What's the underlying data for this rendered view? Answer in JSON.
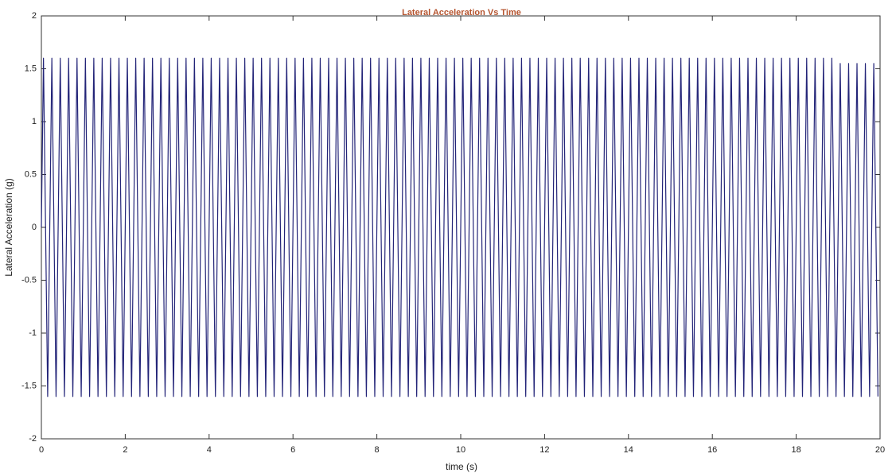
{
  "chart_data": {
    "type": "line",
    "title": "Lateral Acceleration Vs Time",
    "x_label": "time (s)",
    "y_label": "Lateral Acceleration (g)",
    "color": "#232478",
    "title_color": "#b5542f",
    "xlim": [
      0,
      20
    ],
    "ylim": [
      -2,
      2
    ],
    "xticks": [
      0,
      2,
      4,
      6,
      8,
      10,
      12,
      14,
      16,
      18,
      20
    ],
    "yticks": [
      -2,
      -1.5,
      -1,
      -0.5,
      0,
      0.5,
      1,
      1.5,
      2
    ],
    "grid": false,
    "x": [
      0,
      0.05,
      0.15,
      0.25,
      0.35,
      0.45,
      0.55,
      0.65,
      0.75,
      0.85,
      0.95,
      1.05,
      1.15,
      1.25,
      1.35,
      1.45,
      1.55,
      1.65,
      1.75,
      1.85,
      1.95,
      2.05,
      2.15,
      2.25,
      2.35,
      2.45,
      2.55,
      2.65,
      2.75,
      2.85,
      2.95,
      3.05,
      3.15,
      3.25,
      3.35,
      3.45,
      3.55,
      3.65,
      3.75,
      3.85,
      3.95,
      4.05,
      4.15,
      4.25,
      4.35,
      4.45,
      4.55,
      4.65,
      4.75,
      4.85,
      4.95,
      5.05,
      5.15,
      5.25,
      5.35,
      5.45,
      5.55,
      5.65,
      5.75,
      5.85,
      5.95,
      6.05,
      6.15,
      6.25,
      6.35,
      6.45,
      6.55,
      6.65,
      6.75,
      6.85,
      6.95,
      7.05,
      7.15,
      7.25,
      7.35,
      7.45,
      7.55,
      7.65,
      7.75,
      7.85,
      7.95,
      8.05,
      8.15,
      8.25,
      8.35,
      8.45,
      8.55,
      8.65,
      8.75,
      8.85,
      8.95,
      9.05,
      9.15,
      9.25,
      9.35,
      9.45,
      9.55,
      9.65,
      9.75,
      9.85,
      9.95,
      10.05,
      10.15,
      10.25,
      10.35,
      10.45,
      10.55,
      10.65,
      10.75,
      10.85,
      10.95,
      11.05,
      11.15,
      11.25,
      11.35,
      11.45,
      11.55,
      11.65,
      11.75,
      11.85,
      11.95,
      12.05,
      12.15,
      12.25,
      12.35,
      12.45,
      12.55,
      12.65,
      12.75,
      12.85,
      12.95,
      13.05,
      13.15,
      13.25,
      13.35,
      13.45,
      13.55,
      13.65,
      13.75,
      13.85,
      13.95,
      14.05,
      14.15,
      14.25,
      14.35,
      14.45,
      14.55,
      14.65,
      14.75,
      14.85,
      14.95,
      15.05,
      15.15,
      15.25,
      15.35,
      15.45,
      15.55,
      15.65,
      15.75,
      15.85,
      15.95,
      16.05,
      16.15,
      16.25,
      16.35,
      16.45,
      16.55,
      16.65,
      16.75,
      16.85,
      16.95,
      17.05,
      17.15,
      17.25,
      17.35,
      17.45,
      17.55,
      17.65,
      17.75,
      17.85,
      17.95,
      18.05,
      18.15,
      18.25,
      18.35,
      18.45,
      18.55,
      18.65,
      18.75,
      18.85,
      18.95,
      19.05,
      19.15,
      19.25,
      19.35,
      19.45,
      19.55,
      19.65,
      19.75,
      19.85,
      19.95
    ],
    "values": [
      0,
      1.6,
      -1.6,
      1.6,
      -1.6,
      1.6,
      -1.6,
      1.6,
      -1.6,
      1.6,
      -1.6,
      1.6,
      -1.6,
      1.6,
      -1.6,
      1.6,
      -1.6,
      1.6,
      -1.6,
      1.6,
      -1.6,
      1.6,
      -1.6,
      1.6,
      -1.6,
      1.6,
      -1.6,
      1.6,
      -1.6,
      1.6,
      -1.6,
      1.6,
      -1.6,
      1.6,
      -1.6,
      1.6,
      -1.6,
      1.6,
      -1.6,
      1.6,
      -1.6,
      1.6,
      -1.6,
      1.6,
      -1.6,
      1.6,
      -1.6,
      1.6,
      -1.6,
      1.6,
      -1.6,
      1.6,
      -1.6,
      1.6,
      -1.6,
      1.6,
      -1.6,
      1.6,
      -1.6,
      1.6,
      -1.6,
      1.6,
      -1.6,
      1.6,
      -1.6,
      1.6,
      -1.6,
      1.6,
      -1.6,
      1.6,
      -1.6,
      1.6,
      -1.6,
      1.6,
      -1.6,
      1.6,
      -1.6,
      1.6,
      -1.6,
      1.6,
      -1.6,
      1.6,
      -1.6,
      1.6,
      -1.6,
      1.6,
      -1.6,
      1.6,
      -1.6,
      1.6,
      -1.6,
      1.6,
      -1.6,
      1.6,
      -1.6,
      1.6,
      -1.6,
      1.6,
      -1.6,
      1.6,
      -1.6,
      1.6,
      -1.6,
      1.6,
      -1.6,
      1.6,
      -1.6,
      1.6,
      -1.6,
      1.6,
      -1.6,
      1.6,
      -1.6,
      1.6,
      -1.6,
      1.6,
      -1.6,
      1.6,
      -1.6,
      1.6,
      -1.6,
      1.6,
      -1.6,
      1.6,
      -1.6,
      1.6,
      -1.6,
      1.6,
      -1.6,
      1.6,
      -1.6,
      1.6,
      -1.6,
      1.6,
      -1.6,
      1.6,
      -1.6,
      1.6,
      -1.6,
      1.6,
      -1.6,
      1.6,
      -1.6,
      1.6,
      -1.6,
      1.6,
      -1.6,
      1.6,
      -1.6,
      1.6,
      -1.6,
      1.6,
      -1.6,
      1.6,
      -1.6,
      1.6,
      -1.6,
      1.6,
      -1.6,
      1.6,
      -1.6,
      1.6,
      -1.6,
      1.6,
      -1.6,
      1.6,
      -1.6,
      1.6,
      -1.6,
      1.6,
      -1.6,
      1.6,
      -1.6,
      1.6,
      -1.6,
      1.6,
      -1.6,
      1.6,
      -1.6,
      1.6,
      -1.6,
      1.6,
      -1.6,
      1.6,
      -1.6,
      1.6,
      -1.6,
      1.6,
      -1.6,
      1.6,
      -1.6,
      1.55,
      -1.6,
      1.55,
      -1.6,
      1.55,
      -1.6,
      1.55,
      -1.6,
      1.55,
      -1.6
    ]
  }
}
